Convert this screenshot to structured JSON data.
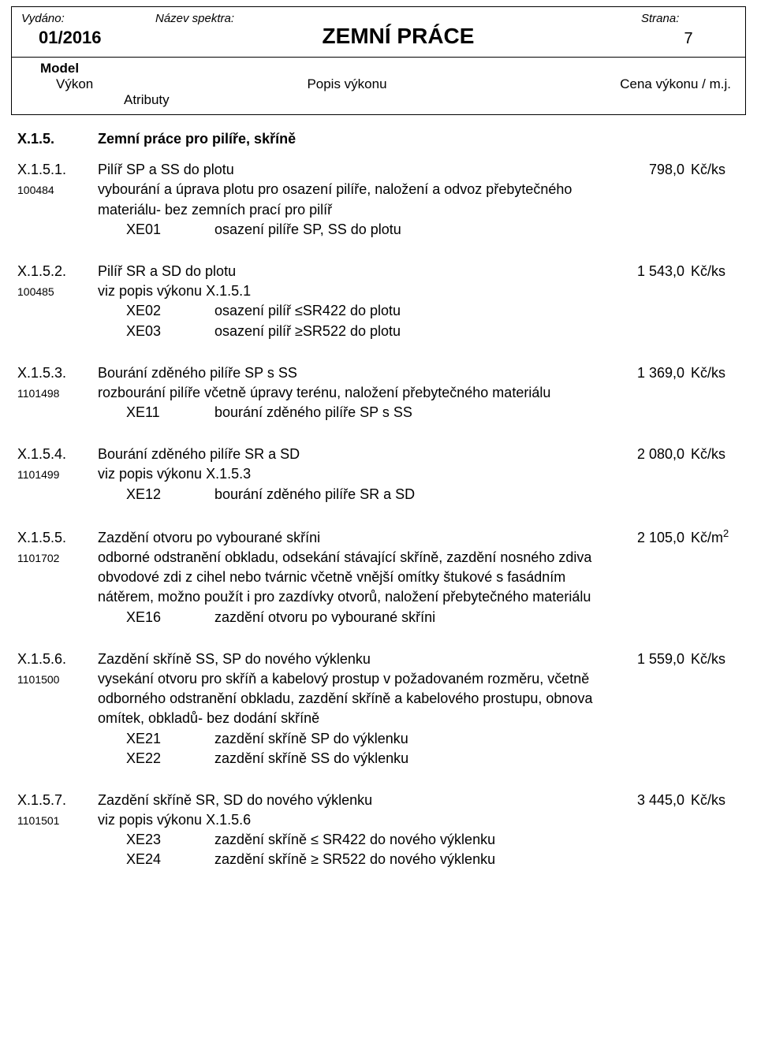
{
  "header": {
    "issued_label": "Vydáno:",
    "spectrum_label": "Název spektra:",
    "page_label": "Strana:",
    "issued_value": "01/2016",
    "title": "ZEMNÍ PRÁCE",
    "page_number": "7"
  },
  "subheader": {
    "model_label": "Model",
    "col_vykon": "Výkon",
    "col_popis": "Popis výkonu",
    "col_cena": "Cena výkonu / m.j.",
    "col_atributy": "Atributy"
  },
  "section": {
    "code": "X.1.5.",
    "name": "Zemní práce pro pilíře, skříně"
  },
  "items": [
    {
      "code": "X.1.5.1.",
      "pid": "100484",
      "title": "Pilíř SP a SS do plotu",
      "price": "798,0",
      "unit": "Kč/ks",
      "desc": "vybourání a úprava plotu pro osazení pilíře, naložení a odvoz přebytečného materiálu- bez zemních prací pro pilíř",
      "attrs": [
        {
          "code": "XE01",
          "name": "osazení pilíře SP, SS do plotu"
        }
      ]
    },
    {
      "code": "X.1.5.2.",
      "pid": "100485",
      "title": "Pilíř SR a SD do plotu",
      "price": "1 543,0",
      "unit": "Kč/ks",
      "desc": "viz popis výkonu X.1.5.1",
      "attrs": [
        {
          "code": "XE02",
          "name": "osazení pilíř ≤SR422 do plotu"
        },
        {
          "code": "XE03",
          "name": "osazení pilíř ≥SR522 do plotu"
        }
      ]
    },
    {
      "code": "X.1.5.3.",
      "pid": "1101498",
      "title": "Bourání zděného pilíře SP s SS",
      "price": "1 369,0",
      "unit": "Kč/ks",
      "desc": "rozbourání pilíře včetně úpravy terénu, naložení přebytečného materiálu",
      "attrs": [
        {
          "code": "XE11",
          "name": "bourání zděného pilíře SP s SS"
        }
      ]
    },
    {
      "code": "X.1.5.4.",
      "pid": "1101499",
      "title": "Bourání zděného pilíře SR a SD",
      "price": "2 080,0",
      "unit": "Kč/ks",
      "desc": "viz popis výkonu X.1.5.3",
      "attrs": [
        {
          "code": "XE12",
          "name": "bourání zděného pilíře SR a SD"
        }
      ]
    },
    {
      "code": "X.1.5.5.",
      "pid": "1101702",
      "title": "Zazdění otvoru po vybourané skříni",
      "price": "2 105,0",
      "unit": "Kč/m²",
      "unit_html": "Kč/m<span class='sup'>2</span>",
      "desc": "odborné odstranění obkladu, odsekání stávající skříně, zazdění nosného zdiva obvodové zdi z cihel nebo tvárnic včetně vnější omítky štukové s fasádním nátěrem, možno použít i pro zazdívky otvorů, naložení přebytečného materiálu",
      "attrs": [
        {
          "code": "XE16",
          "name": "zazdění otvoru po vybourané skříni"
        }
      ]
    },
    {
      "code": "X.1.5.6.",
      "pid": "1101500",
      "title": "Zazdění skříně SS, SP do nového výklenku",
      "price": "1 559,0",
      "unit": "Kč/ks",
      "desc": "vysekání otvoru pro skříň a kabelový prostup v požadovaném rozměru, včetně odborného odstranění obkladu, zazdění skříně a kabelového prostupu, obnova omítek, obkladů- bez dodání skříně",
      "attrs": [
        {
          "code": "XE21",
          "name": "zazdění skříně SP do výklenku"
        },
        {
          "code": "XE22",
          "name": "zazdění skříně SS do výklenku"
        }
      ]
    },
    {
      "code": "X.1.5.7.",
      "pid": "1101501",
      "title": "Zazdění skříně SR, SD do nového výklenku",
      "price": "3 445,0",
      "unit": "Kč/ks",
      "desc": "viz popis výkonu X.1.5.6",
      "attrs": [
        {
          "code": "XE23",
          "name": "zazdění skříně ≤ SR422 do nového výklenku"
        },
        {
          "code": "XE24",
          "name": "zazdění skříně ≥ SR522 do nového výklenku"
        }
      ]
    }
  ]
}
